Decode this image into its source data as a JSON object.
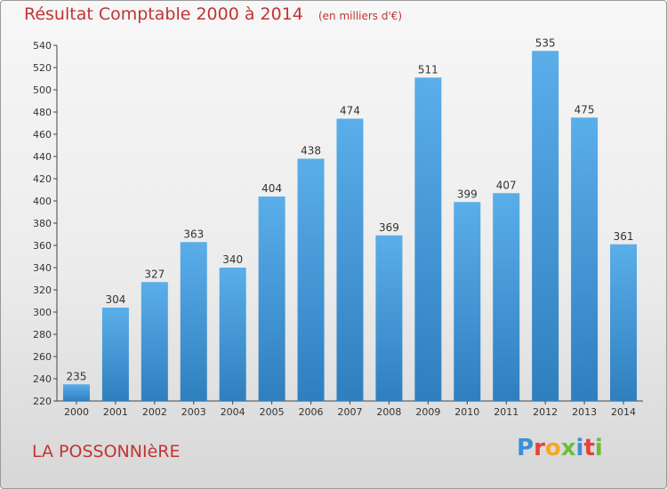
{
  "chart_data": {
    "type": "bar",
    "title": "Résultat Comptable 2000 à 2014",
    "subtitle": "(en milliers d'€)",
    "xlabel": "",
    "ylabel": "",
    "categories": [
      "2000",
      "2001",
      "2002",
      "2003",
      "2004",
      "2005",
      "2006",
      "2007",
      "2008",
      "2009",
      "2010",
      "2011",
      "2012",
      "2013",
      "2014"
    ],
    "values": [
      235,
      304,
      327,
      363,
      340,
      404,
      438,
      474,
      369,
      511,
      399,
      407,
      535,
      475,
      361
    ],
    "ylim": [
      220,
      540
    ],
    "ytick_step": 20,
    "grid": false,
    "legend": "none",
    "bar_color_top": "#5aaee9",
    "bar_color_bottom": "#2f7fbf"
  },
  "footer": {
    "place_name": "LA POSSONNIèRE",
    "logo_letters": [
      "P",
      "r",
      "o",
      "x",
      "i",
      "t",
      "i"
    ],
    "logo_colors": [
      "#3d8fd6",
      "#e6403a",
      "#f5a623",
      "#6bbf3a",
      "#3d8fd6",
      "#e6403a",
      "#6bbf3a"
    ]
  },
  "colors": {
    "title": "#c23434",
    "axis": "#444444"
  }
}
